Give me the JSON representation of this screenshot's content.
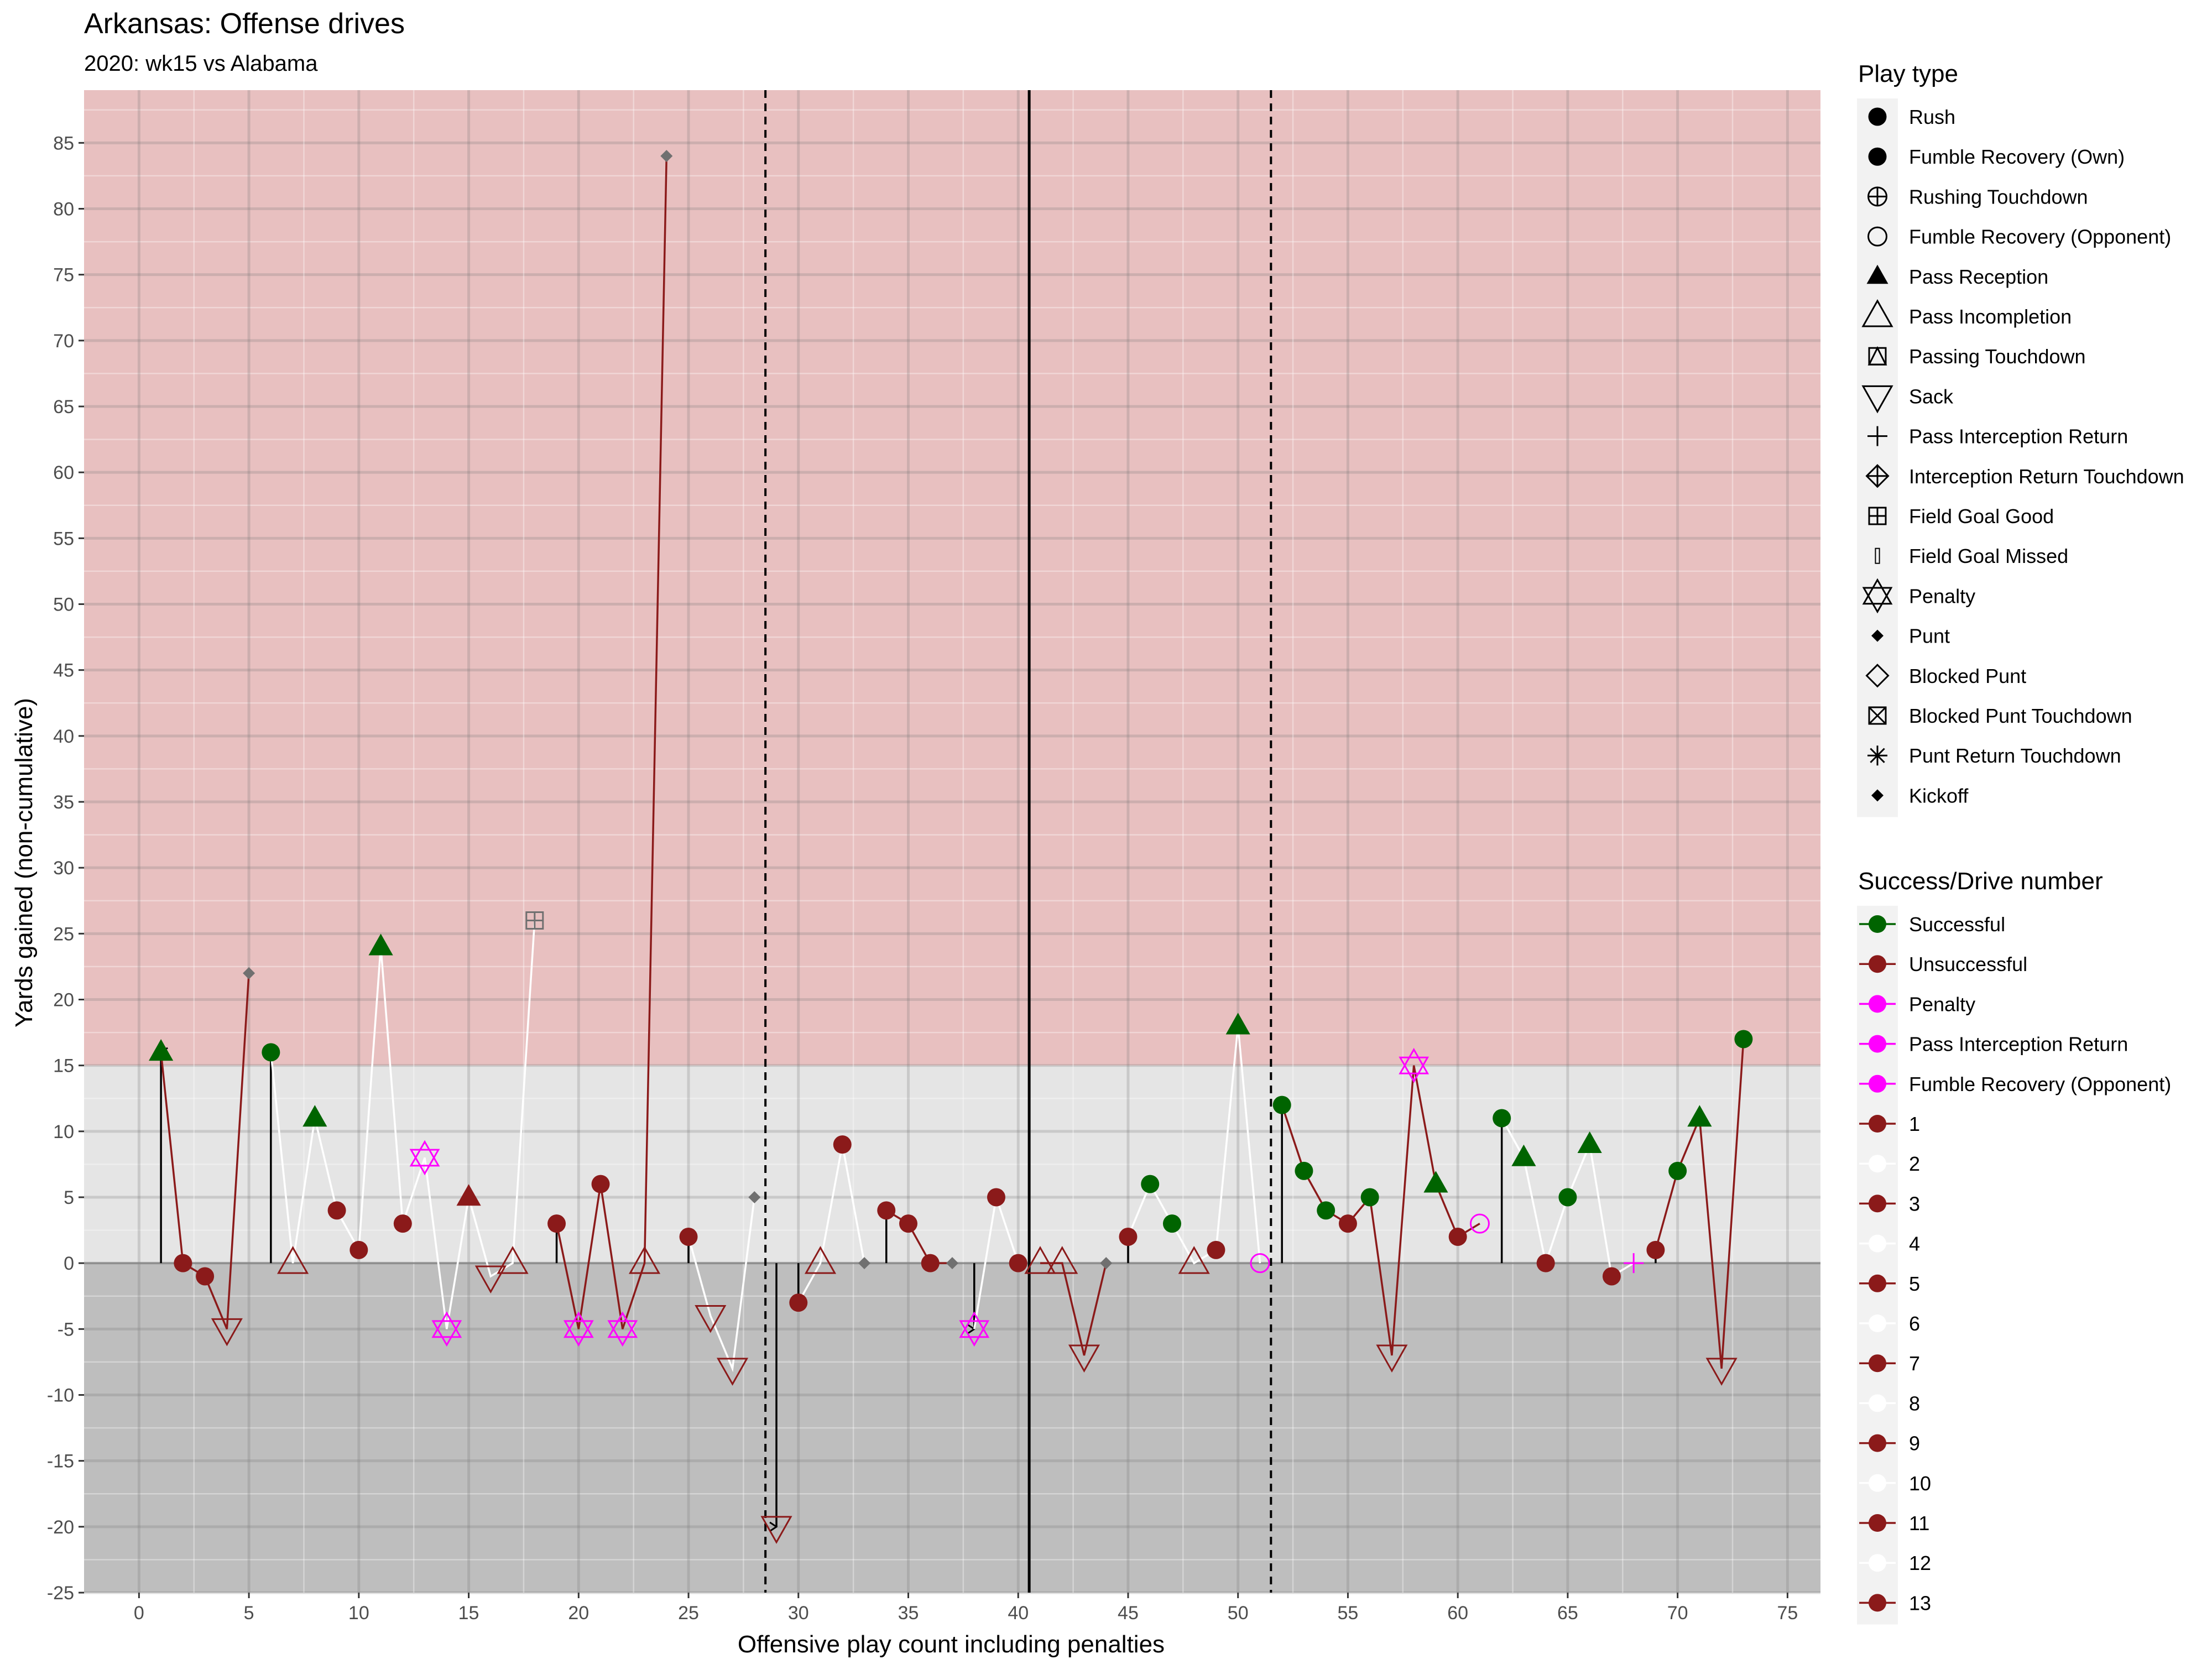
{
  "chart_data": {
    "type": "scatter",
    "title": "Arkansas: Offense drives",
    "subtitle": "2020: wk15 vs Alabama",
    "xlabel": "Offensive play count including penalties",
    "ylabel": "Yards gained (non-cumulative)",
    "xlim": [
      -2.5,
      76.5
    ],
    "ylim": [
      -25,
      89
    ],
    "x_ticks": [
      0,
      5,
      10,
      15,
      20,
      25,
      30,
      35,
      40,
      45,
      50,
      55,
      60,
      65,
      70,
      75
    ],
    "y_ticks": [
      -25,
      -20,
      -15,
      -10,
      -5,
      0,
      5,
      10,
      15,
      20,
      25,
      30,
      35,
      40,
      45,
      50,
      55,
      60,
      65,
      70,
      75,
      80,
      85
    ],
    "background_zones": [
      {
        "from": 15,
        "to": 89,
        "color": "#e8c0c0"
      },
      {
        "from": 0,
        "to": 15,
        "color": "#e5e5e5"
      },
      {
        "from": -25,
        "to": 0,
        "color": "#bebebe"
      }
    ],
    "vertical_lines": [
      {
        "x": 28.5,
        "style": "dashed"
      },
      {
        "x": 40.5,
        "style": "solid"
      },
      {
        "x": 51.5,
        "style": "dashed"
      }
    ],
    "arrows": [
      {
        "x": 1,
        "from": 0,
        "to": 16
      },
      {
        "x": 6,
        "from": 0,
        "to": 16
      },
      {
        "x": 19,
        "from": 0,
        "to": 3
      },
      {
        "x": 25,
        "from": 0,
        "to": 2
      },
      {
        "x": 29,
        "from": 0,
        "to": -20
      },
      {
        "x": 30,
        "from": 0,
        "to": -3
      },
      {
        "x": 34,
        "from": 0,
        "to": 4
      },
      {
        "x": 38,
        "from": 0,
        "to": -5
      },
      {
        "x": 45,
        "from": 0,
        "to": 2
      },
      {
        "x": 52,
        "from": 0,
        "to": 12
      },
      {
        "x": 62,
        "from": 0,
        "to": 11
      },
      {
        "x": 69,
        "from": 0,
        "to": 1
      }
    ],
    "drives": [
      {
        "drive": 1,
        "line_color": "#8b1a1a",
        "points": [
          {
            "x": 1,
            "y": 16,
            "play": "Pass Reception",
            "result": "Successful"
          },
          {
            "x": 2,
            "y": 0,
            "play": "Rush",
            "result": "Unsuccessful"
          },
          {
            "x": 3,
            "y": -1,
            "play": "Rush",
            "result": "Unsuccessful"
          },
          {
            "x": 4,
            "y": -5,
            "play": "Sack",
            "result": "Unsuccessful"
          },
          {
            "x": 5,
            "y": 22,
            "play": "Punt",
            "result": "Neutral"
          }
        ]
      },
      {
        "drive": 2,
        "line_color": "#ffffff",
        "points": [
          {
            "x": 6,
            "y": 16,
            "play": "Rush",
            "result": "Successful"
          },
          {
            "x": 7,
            "y": 0,
            "play": "Pass Incompletion",
            "result": "Unsuccessful"
          },
          {
            "x": 8,
            "y": 11,
            "play": "Pass Reception",
            "result": "Successful"
          },
          {
            "x": 9,
            "y": 4,
            "play": "Rush",
            "result": "Unsuccessful"
          },
          {
            "x": 10,
            "y": 1,
            "play": "Rush",
            "result": "Unsuccessful"
          },
          {
            "x": 11,
            "y": 24,
            "play": "Pass Reception",
            "result": "Successful"
          },
          {
            "x": 12,
            "y": 3,
            "play": "Rush",
            "result": "Unsuccessful"
          },
          {
            "x": 13,
            "y": 8,
            "play": "Penalty",
            "result": "Penalty"
          },
          {
            "x": 14,
            "y": -5,
            "play": "Penalty",
            "result": "Penalty"
          },
          {
            "x": 15,
            "y": 5,
            "play": "Pass Reception",
            "result": "Unsuccessful"
          },
          {
            "x": 16,
            "y": -1,
            "play": "Sack",
            "result": "Unsuccessful"
          },
          {
            "x": 17,
            "y": 0,
            "play": "Pass Incompletion",
            "result": "Unsuccessful"
          },
          {
            "x": 18,
            "y": 26,
            "play": "Field Goal Good",
            "result": "Neutral"
          }
        ]
      },
      {
        "drive": 3,
        "line_color": "#8b1a1a",
        "points": [
          {
            "x": 19,
            "y": 3,
            "play": "Rush",
            "result": "Unsuccessful"
          },
          {
            "x": 20,
            "y": -5,
            "play": "Penalty",
            "result": "Penalty"
          },
          {
            "x": 21,
            "y": 6,
            "play": "Rush",
            "result": "Unsuccessful"
          },
          {
            "x": 22,
            "y": -5,
            "play": "Penalty",
            "result": "Penalty"
          },
          {
            "x": 23,
            "y": 0,
            "play": "Pass Incompletion",
            "result": "Unsuccessful"
          },
          {
            "x": 24,
            "y": 84,
            "play": "Punt",
            "result": "Neutral"
          }
        ]
      },
      {
        "drive": 4,
        "line_color": "#ffffff",
        "points": [
          {
            "x": 25,
            "y": 2,
            "play": "Rush",
            "result": "Unsuccessful"
          },
          {
            "x": 26,
            "y": -4,
            "play": "Sack",
            "result": "Unsuccessful"
          },
          {
            "x": 27,
            "y": -8,
            "play": "Sack",
            "result": "Unsuccessful"
          },
          {
            "x": 28,
            "y": 5,
            "play": "Punt",
            "result": "Neutral"
          }
        ]
      },
      {
        "drive": 5,
        "line_color": "#8b1a1a",
        "points": [
          {
            "x": 29,
            "y": -20,
            "play": "Sack",
            "result": "Unsuccessful"
          }
        ]
      },
      {
        "drive": 6,
        "line_color": "#ffffff",
        "points": [
          {
            "x": 30,
            "y": -3,
            "play": "Rush",
            "result": "Unsuccessful"
          },
          {
            "x": 31,
            "y": 0,
            "play": "Pass Incompletion",
            "result": "Unsuccessful"
          },
          {
            "x": 32,
            "y": 9,
            "play": "Rush",
            "result": "Unsuccessful"
          },
          {
            "x": 33,
            "y": 0,
            "play": "Punt",
            "result": "Neutral"
          }
        ]
      },
      {
        "drive": 7,
        "line_color": "#8b1a1a",
        "points": [
          {
            "x": 34,
            "y": 4,
            "play": "Rush",
            "result": "Unsuccessful"
          },
          {
            "x": 35,
            "y": 3,
            "play": "Rush",
            "result": "Unsuccessful"
          },
          {
            "x": 36,
            "y": 0,
            "play": "Rush",
            "result": "Unsuccessful"
          },
          {
            "x": 37,
            "y": 0,
            "play": "Punt",
            "result": "Neutral"
          }
        ]
      },
      {
        "drive": 8,
        "line_color": "#ffffff",
        "points": [
          {
            "x": 38,
            "y": -5,
            "play": "Penalty",
            "result": "Penalty"
          },
          {
            "x": 39,
            "y": 5,
            "play": "Rush",
            "result": "Unsuccessful"
          },
          {
            "x": 40,
            "y": 0,
            "play": "Rush",
            "result": "Unsuccessful"
          }
        ]
      },
      {
        "drive": 9,
        "line_color": "#8b1a1a",
        "points": [
          {
            "x": 41,
            "y": 0,
            "play": "Pass Incompletion",
            "result": "Unsuccessful"
          },
          {
            "x": 42,
            "y": 0,
            "play": "Pass Incompletion",
            "result": "Unsuccessful"
          },
          {
            "x": 43,
            "y": -7,
            "play": "Sack",
            "result": "Unsuccessful"
          },
          {
            "x": 44,
            "y": 0,
            "play": "Punt",
            "result": "Neutral"
          }
        ]
      },
      {
        "drive": 10,
        "line_color": "#ffffff",
        "points": [
          {
            "x": 45,
            "y": 2,
            "play": "Rush",
            "result": "Unsuccessful"
          },
          {
            "x": 46,
            "y": 6,
            "play": "Rush",
            "result": "Successful"
          },
          {
            "x": 47,
            "y": 3,
            "play": "Rush",
            "result": "Successful"
          },
          {
            "x": 48,
            "y": 0,
            "play": "Pass Incompletion",
            "result": "Unsuccessful"
          },
          {
            "x": 49,
            "y": 1,
            "play": "Rush",
            "result": "Unsuccessful"
          },
          {
            "x": 50,
            "y": 18,
            "play": "Pass Reception",
            "result": "Successful"
          },
          {
            "x": 51,
            "y": 0,
            "play": "Fumble Recovery (Opponent)",
            "result": "Fumble Recovery (Opponent)"
          }
        ]
      },
      {
        "drive": 11,
        "line_color": "#8b1a1a",
        "points": [
          {
            "x": 52,
            "y": 12,
            "play": "Rush",
            "result": "Successful"
          },
          {
            "x": 53,
            "y": 7,
            "play": "Rush",
            "result": "Successful"
          },
          {
            "x": 54,
            "y": 4,
            "play": "Rush",
            "result": "Successful"
          },
          {
            "x": 55,
            "y": 3,
            "play": "Rush",
            "result": "Unsuccessful"
          },
          {
            "x": 56,
            "y": 5,
            "play": "Rush",
            "result": "Successful"
          },
          {
            "x": 57,
            "y": -7,
            "play": "Sack",
            "result": "Unsuccessful"
          },
          {
            "x": 58,
            "y": 15,
            "play": "Penalty",
            "result": "Penalty"
          },
          {
            "x": 59,
            "y": 6,
            "play": "Pass Reception",
            "result": "Successful"
          },
          {
            "x": 60,
            "y": 2,
            "play": "Rush",
            "result": "Unsuccessful"
          },
          {
            "x": 61,
            "y": 3,
            "play": "Fumble Recovery (Opponent)",
            "result": "Fumble Recovery (Opponent)"
          }
        ]
      },
      {
        "drive": 12,
        "line_color": "#ffffff",
        "points": [
          {
            "x": 62,
            "y": 11,
            "play": "Rush",
            "result": "Successful"
          },
          {
            "x": 63,
            "y": 8,
            "play": "Pass Reception",
            "result": "Successful"
          },
          {
            "x": 64,
            "y": 0,
            "play": "Rush",
            "result": "Unsuccessful"
          },
          {
            "x": 65,
            "y": 5,
            "play": "Rush",
            "result": "Successful"
          },
          {
            "x": 66,
            "y": 9,
            "play": "Pass Reception",
            "result": "Successful"
          },
          {
            "x": 67,
            "y": -1,
            "play": "Rush",
            "result": "Unsuccessful"
          },
          {
            "x": 68,
            "y": 0,
            "play": "Pass Interception Return",
            "result": "Pass Interception Return"
          }
        ]
      },
      {
        "drive": 13,
        "line_color": "#8b1a1a",
        "points": [
          {
            "x": 69,
            "y": 1,
            "play": "Rush",
            "result": "Unsuccessful"
          },
          {
            "x": 70,
            "y": 7,
            "play": "Rush",
            "result": "Successful"
          },
          {
            "x": 71,
            "y": 11,
            "play": "Pass Reception",
            "result": "Successful"
          },
          {
            "x": 72,
            "y": -8,
            "play": "Sack",
            "result": "Unsuccessful"
          },
          {
            "x": 73,
            "y": 17,
            "play": "Rush",
            "result": "Successful"
          }
        ]
      }
    ],
    "colors": {
      "Successful": "#006400",
      "Unsuccessful": "#8b1a1a",
      "Penalty": "#ff00ff",
      "Pass Interception Return": "#ff00ff",
      "Fumble Recovery (Opponent)": "#ff00ff",
      "Neutral": "#707070",
      "drive_odd": "#8b1a1a",
      "drive_even": "#ffffff"
    }
  },
  "legend": {
    "play_type": {
      "title": "Play type",
      "items": [
        {
          "label": "Rush",
          "icon": "filled-circle"
        },
        {
          "label": "Fumble Recovery (Own)",
          "icon": "filled-circle"
        },
        {
          "label": "Rushing Touchdown",
          "icon": "circle-plus"
        },
        {
          "label": "Fumble Recovery (Opponent)",
          "icon": "open-circle"
        },
        {
          "label": "Pass Reception",
          "icon": "filled-triangle"
        },
        {
          "label": "Pass Incompletion",
          "icon": "open-triangle"
        },
        {
          "label": "Passing Touchdown",
          "icon": "square-triangle"
        },
        {
          "label": "Sack",
          "icon": "open-triangle-down"
        },
        {
          "label": "Pass Interception Return",
          "icon": "plus"
        },
        {
          "label": "Interception Return Touchdown",
          "icon": "diamond-plus"
        },
        {
          "label": "Field Goal Good",
          "icon": "square-plus"
        },
        {
          "label": "Field Goal Missed",
          "icon": "thin-rect"
        },
        {
          "label": "Penalty",
          "icon": "star-of-david"
        },
        {
          "label": "Punt",
          "icon": "filled-diamond"
        },
        {
          "label": "Blocked Punt",
          "icon": "open-diamond"
        },
        {
          "label": "Blocked Punt Touchdown",
          "icon": "square-cross"
        },
        {
          "label": "Punt Return Touchdown",
          "icon": "asterisk"
        },
        {
          "label": "Kickoff",
          "icon": "filled-diamond"
        }
      ]
    },
    "success": {
      "title": "Success/Drive number",
      "items": [
        {
          "label": "Successful",
          "color": "#006400",
          "line": "#006400"
        },
        {
          "label": "Unsuccessful",
          "color": "#8b1a1a",
          "line": "#8b1a1a"
        },
        {
          "label": "Penalty",
          "color": "#ff00ff",
          "line": "#ff00ff"
        },
        {
          "label": "Pass Interception Return",
          "color": "#ff00ff",
          "line": "#ff00ff"
        },
        {
          "label": "Fumble Recovery (Opponent)",
          "color": "#ff00ff",
          "line": "#ff00ff"
        },
        {
          "label": "1",
          "color": "#8b1a1a",
          "line": "#8b1a1a"
        },
        {
          "label": "2",
          "color": "#ffffff",
          "line": "#ffffff"
        },
        {
          "label": "3",
          "color": "#8b1a1a",
          "line": "#8b1a1a"
        },
        {
          "label": "4",
          "color": "#ffffff",
          "line": "#ffffff"
        },
        {
          "label": "5",
          "color": "#8b1a1a",
          "line": "#8b1a1a"
        },
        {
          "label": "6",
          "color": "#ffffff",
          "line": "#ffffff"
        },
        {
          "label": "7",
          "color": "#8b1a1a",
          "line": "#8b1a1a"
        },
        {
          "label": "8",
          "color": "#ffffff",
          "line": "#ffffff"
        },
        {
          "label": "9",
          "color": "#8b1a1a",
          "line": "#8b1a1a"
        },
        {
          "label": "10",
          "color": "#ffffff",
          "line": "#ffffff"
        },
        {
          "label": "11",
          "color": "#8b1a1a",
          "line": "#8b1a1a"
        },
        {
          "label": "12",
          "color": "#ffffff",
          "line": "#ffffff"
        },
        {
          "label": "13",
          "color": "#8b1a1a",
          "line": "#8b1a1a"
        }
      ]
    }
  }
}
